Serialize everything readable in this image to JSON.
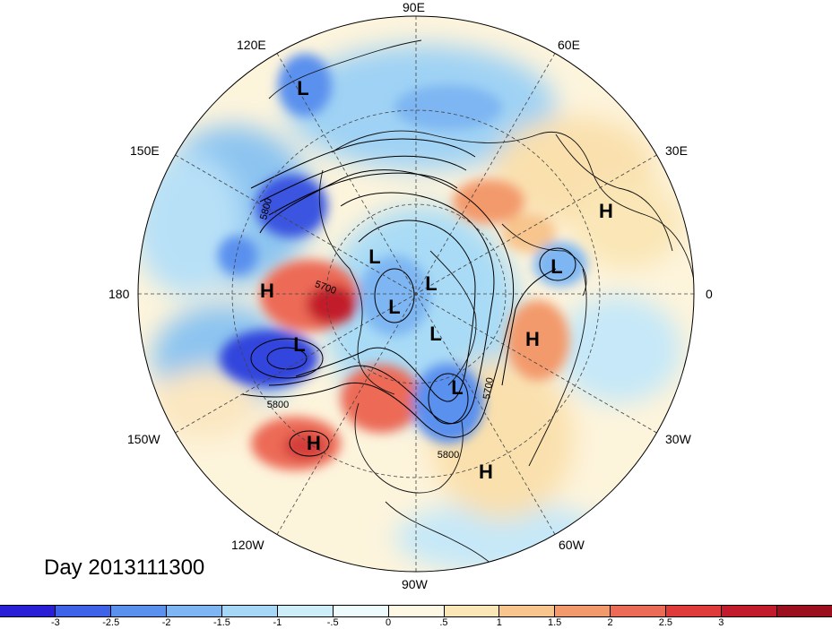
{
  "map": {
    "longitude_labels": [
      "90E",
      "60E",
      "30E",
      "0",
      "30W",
      "60W",
      "90W",
      "120W",
      "150W",
      "180",
      "150E",
      "120E"
    ],
    "systems": [
      {
        "label": "H",
        "name": "high-pressure-north-pacific"
      },
      {
        "label": "L",
        "name": "low-pressure-aleutian"
      },
      {
        "label": "H",
        "name": "high-pressure-east-pacific"
      },
      {
        "label": "L",
        "name": "low-pressure-east-asia"
      },
      {
        "label": "L",
        "name": "low-pressure-arctic-1"
      },
      {
        "label": "L",
        "name": "low-pressure-arctic-2"
      },
      {
        "label": "L",
        "name": "low-pressure-arctic-3"
      },
      {
        "label": "L",
        "name": "low-pressure-canada"
      },
      {
        "label": "L",
        "name": "low-pressure-hudson"
      },
      {
        "label": "H",
        "name": "high-pressure-north-atlantic"
      },
      {
        "label": "H",
        "name": "high-pressure-subtropical-atlantic"
      },
      {
        "label": "L",
        "name": "low-pressure-europe"
      },
      {
        "label": "H",
        "name": "high-pressure-siberia"
      }
    ],
    "contour_labels": [
      "5800",
      "5700",
      "5800",
      "5700",
      "5800"
    ]
  },
  "date_label": "Day 2013111300",
  "colorbar": {
    "colors": [
      "#2a1fd6",
      "#3f63e8",
      "#5a90ee",
      "#7db6f2",
      "#a6d7f6",
      "#cdeef9",
      "#eefbfd",
      "#fdf8e4",
      "#fae6b6",
      "#f7c58d",
      "#f39a6c",
      "#ec6b57",
      "#e03b3b",
      "#c21c2c",
      "#9c0f1f"
    ],
    "labels": [
      "-3",
      "-2.5",
      "-2",
      "-1.5",
      "-1",
      "-.5",
      "0",
      ".5",
      "1",
      "1.5",
      "2",
      "2.5",
      "3"
    ]
  }
}
